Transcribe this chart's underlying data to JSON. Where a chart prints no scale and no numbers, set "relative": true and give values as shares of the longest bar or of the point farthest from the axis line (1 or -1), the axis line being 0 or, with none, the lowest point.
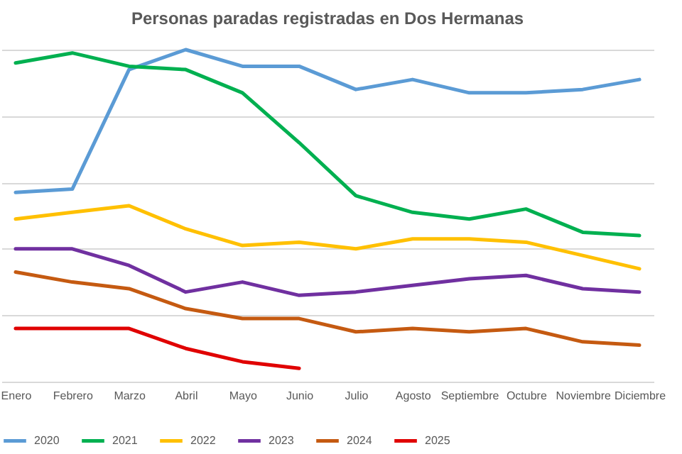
{
  "chart_data": {
    "type": "line",
    "title": "Personas paradas registradas en Dos Hermanas",
    "relative": true,
    "grid": "y",
    "legend": "bottom",
    "marker": "none",
    "line_style": "solid",
    "categories": [
      "Enero",
      "Febrero",
      "Marzo",
      "Abril",
      "Mayo",
      "Junio",
      "Julio",
      "Agosto",
      "Septiembre",
      "Octubre",
      "Noviembre",
      "Diciembre"
    ],
    "series": [
      {
        "name": "2020",
        "color": "#5b9bd5",
        "values": [
          0.57,
          0.58,
          0.94,
          1,
          0.95,
          0.95,
          0.88,
          0.91,
          0.87,
          0.87,
          0.88,
          0.91
        ]
      },
      {
        "name": "2021",
        "color": "#00b050",
        "values": [
          0.96,
          0.99,
          0.95,
          0.94,
          0.87,
          0.72,
          0.56,
          0.51,
          0.49,
          0.52,
          0.45,
          0.44
        ]
      },
      {
        "name": "2022",
        "color": "#ffc000",
        "values": [
          0.49,
          0.51,
          0.53,
          0.46,
          0.41,
          0.42,
          0.4,
          0.43,
          0.43,
          0.42,
          0.38,
          0.34
        ]
      },
      {
        "name": "2023",
        "color": "#7030a0",
        "values": [
          0.4,
          0.4,
          0.35,
          0.27,
          0.3,
          0.26,
          0.27,
          0.29,
          0.31,
          0.32,
          0.28,
          0.27
        ]
      },
      {
        "name": "2024",
        "color": "#c55a11",
        "values": [
          0.33,
          0.3,
          0.28,
          0.22,
          0.19,
          0.19,
          0.15,
          0.16,
          0.15,
          0.16,
          0.12,
          0.11
        ]
      },
      {
        "name": "2025",
        "color": "#e00000",
        "values": [
          0.16,
          0.16,
          0.16,
          0.1,
          0.06,
          0.04,
          null,
          null,
          null,
          null,
          null,
          null
        ]
      }
    ]
  }
}
